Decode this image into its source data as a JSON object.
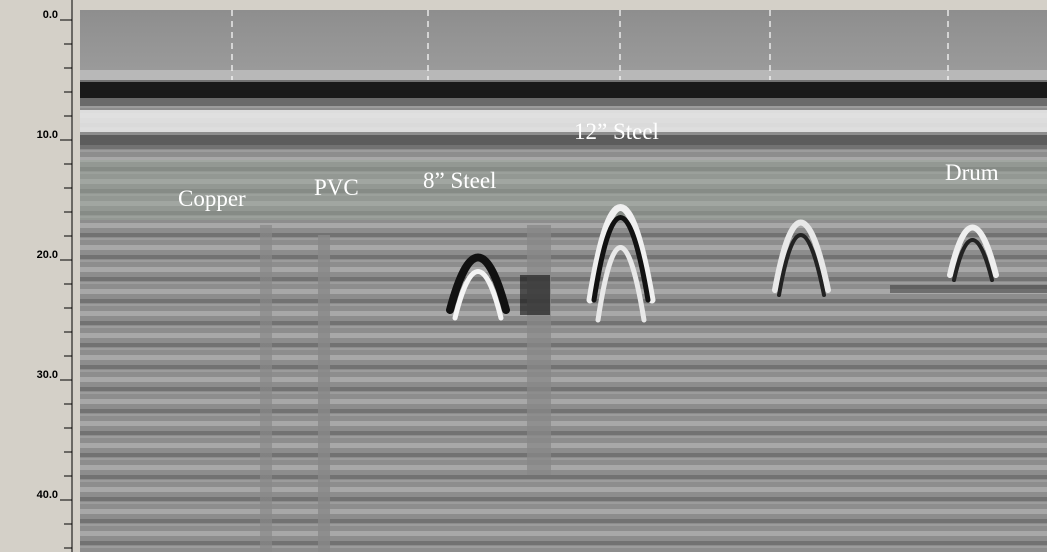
{
  "depth_axis": {
    "ticks": [
      {
        "value": 0,
        "label": "0.0"
      },
      {
        "value": 10,
        "label": "10.0"
      },
      {
        "value": 20,
        "label": "20.0"
      },
      {
        "value": 30,
        "label": "30.0"
      },
      {
        "value": 40,
        "label": "40.0"
      }
    ]
  },
  "targets": [
    {
      "label": "Copper"
    },
    {
      "label": "PVC"
    },
    {
      "label": "8” Steel"
    },
    {
      "label": "12” Steel"
    },
    {
      "label": "Drum"
    }
  ]
}
